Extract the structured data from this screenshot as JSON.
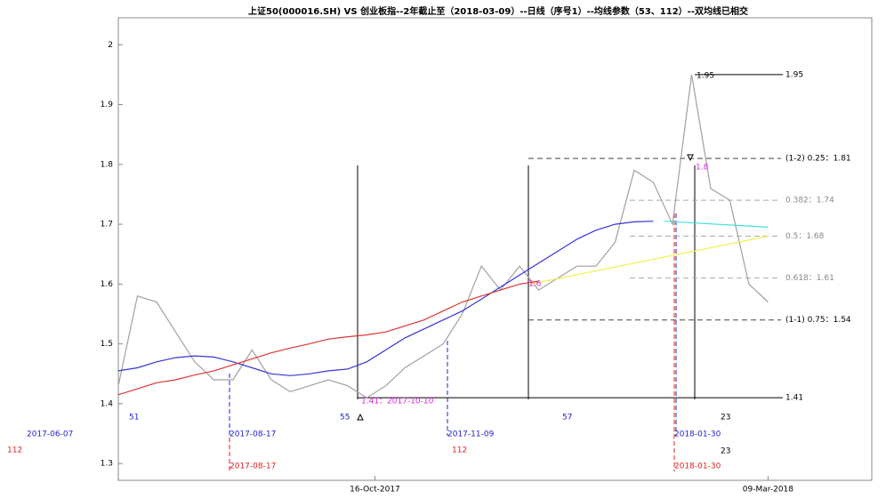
{
  "chart_data": {
    "type": "line",
    "title": "上证50(000016.SH) VS 创业板指--2年截止至（2018-03-09）--日线（序号1）--均线参数（53、112）--双均线已相交",
    "x": [
      "2017-07-14",
      "2017-07-21",
      "2017-07-28",
      "2017-08-04",
      "2017-08-11",
      "2017-08-18",
      "2017-08-25",
      "2017-09-01",
      "2017-09-08",
      "2017-09-15",
      "2017-09-22",
      "2017-09-29",
      "2017-10-06",
      "2017-10-13",
      "2017-10-20",
      "2017-10-27",
      "2017-11-03",
      "2017-11-10",
      "2017-11-17",
      "2017-11-24",
      "2017-12-01",
      "2017-12-08",
      "2017-12-15",
      "2017-12-22",
      "2017-12-29",
      "2018-01-05",
      "2018-01-12",
      "2018-01-19",
      "2018-01-26",
      "2018-02-02",
      "2018-02-09",
      "2018-02-16",
      "2018-02-23",
      "2018-03-02",
      "2018-03-09"
    ],
    "series": [
      {
        "color": "#a0a0a0",
        "values": [
          1.43,
          1.58,
          1.57,
          1.52,
          1.47,
          1.44,
          1.44,
          1.49,
          1.44,
          1.42,
          1.43,
          1.44,
          1.43,
          1.41,
          1.43,
          1.46,
          1.48,
          1.5,
          1.55,
          1.63,
          1.59,
          1.63,
          1.59,
          1.61,
          1.63,
          1.63,
          1.67,
          1.79,
          1.77,
          1.7,
          1.95,
          1.76,
          1.74,
          1.6,
          1.57
        ]
      },
      {
        "color": "#3535d8",
        "values": [
          1.455,
          1.46,
          1.47,
          1.477,
          1.48,
          1.478,
          1.47,
          1.46,
          1.45,
          1.447,
          1.45,
          1.455,
          1.458,
          1.47,
          1.49,
          1.51,
          1.525,
          1.54,
          1.555,
          1.575,
          1.595,
          1.615,
          1.635,
          1.655,
          1.675,
          1.69,
          1.7,
          1.704,
          1.705,
          null,
          null,
          null,
          null,
          null,
          null
        ]
      },
      {
        "color": "#e03535",
        "values": [
          1.415,
          1.425,
          1.435,
          1.44,
          1.448,
          1.455,
          1.465,
          1.475,
          1.485,
          1.493,
          1.5,
          1.508,
          1.512,
          1.515,
          1.52,
          1.53,
          1.54,
          1.555,
          1.57,
          1.58,
          1.59,
          1.6,
          1.605,
          null,
          null,
          null,
          null,
          null,
          null,
          null,
          null,
          null,
          null,
          null,
          null
        ]
      }
    ],
    "lines": [
      {
        "color": "#40e0e0",
        "x": [
          "2018-01-30",
          "2018-03-09"
        ],
        "values": [
          1.705,
          1.695
        ]
      },
      {
        "color": "#f0f050",
        "x": [
          "2017-12-12",
          "2018-03-09"
        ],
        "values": [
          1.6,
          1.68
        ]
      }
    ],
    "levels": [
      {
        "value": 1.95,
        "label": "1.95"
      },
      {
        "value": 1.81,
        "label": "(1-2) 0.25：1.81"
      },
      {
        "value": 1.74,
        "label": "0.382：1.74"
      },
      {
        "value": 1.68,
        "label": "0.5：1.68"
      },
      {
        "value": 1.61,
        "label": "0.618：1.61"
      },
      {
        "value": 1.54,
        "label": "(1-1) 0.75：1.54"
      },
      {
        "value": 1.41,
        "label": "1.41"
      }
    ],
    "annotations": [
      {
        "text": "1.95",
        "color": "#000000"
      },
      {
        "text": "1.8",
        "color": "#dd22dd"
      },
      {
        "text": "1.6",
        "color": "#dd22dd"
      },
      {
        "text": "1.41：2017-10-10",
        "color": "#dd22dd"
      },
      {
        "text": "51",
        "color": "#2222cc"
      },
      {
        "text": "55",
        "color": "#2222cc"
      },
      {
        "text": "57",
        "color": "#2222cc"
      },
      {
        "text": "23",
        "color": "#000000"
      },
      {
        "text": "2017-06-07",
        "color": "#2222cc"
      },
      {
        "text": "112",
        "color": "#dd2222"
      },
      {
        "text": "2017-08-17",
        "color": "#2222cc"
      },
      {
        "text": "2017-08-17",
        "color": "#dd2222"
      },
      {
        "text": "2017-11-09",
        "color": "#2222cc"
      },
      {
        "text": "112",
        "color": "#dd2222"
      },
      {
        "text": "2018-01-30",
        "color": "#2222cc"
      },
      {
        "text": "2018-01-30",
        "color": "#dd2222"
      },
      {
        "text": "23",
        "color": "#000000"
      }
    ],
    "xlim": [
      "2017-07-14",
      "2018-04-16"
    ],
    "xticks": [
      {
        "value": "2017-10-16",
        "label": "16-Oct-2017"
      },
      {
        "value": "2018-03-09",
        "label": "09-Mar-2018"
      }
    ],
    "ylim": [
      1.272,
      2.045
    ],
    "yticks": [
      1.3,
      1.4,
      1.5,
      1.6,
      1.7,
      1.8,
      1.9,
      2
    ]
  }
}
